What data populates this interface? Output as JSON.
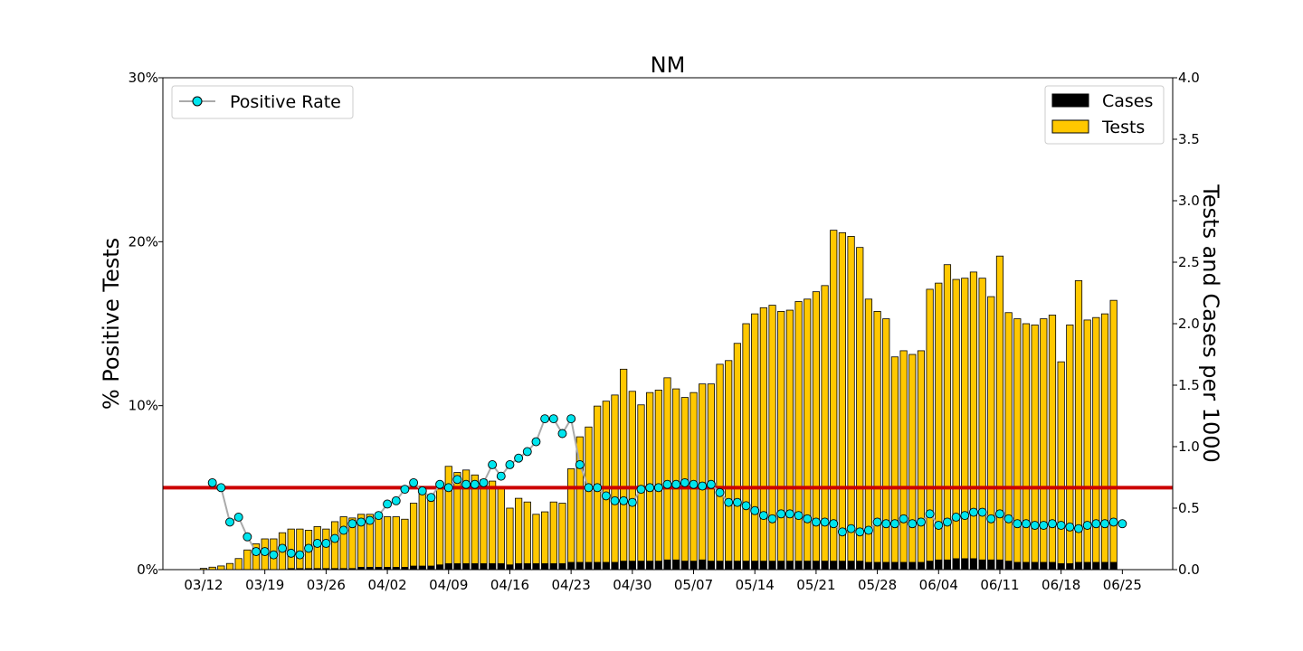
{
  "chart_data": {
    "type": "bar",
    "title": "NM",
    "ylabel_left": "% Positive Tests",
    "ylabel_right": "Tests and Cases per 1000",
    "ylim_left": [
      0,
      30
    ],
    "ylim_right": [
      0,
      4.0
    ],
    "left_ticks": [
      "0%",
      "10%",
      "20%",
      "30%"
    ],
    "right_ticks": [
      "0.0",
      "0.5",
      "1.0",
      "1.5",
      "2.0",
      "2.5",
      "3.0",
      "3.5",
      "4.0"
    ],
    "x_tick_labels": [
      "03/12",
      "03/19",
      "03/26",
      "04/02",
      "04/09",
      "04/16",
      "04/23",
      "04/30",
      "05/07",
      "05/14",
      "05/21",
      "05/28",
      "06/04",
      "06/11",
      "06/18",
      "06/25"
    ],
    "x_tick_days": [
      0,
      7,
      14,
      21,
      28,
      35,
      42,
      49,
      56,
      63,
      70,
      77,
      84,
      91,
      98,
      105
    ],
    "first_day": "03/12",
    "threshold": 5,
    "legend_left": {
      "position": "top-left",
      "entries": [
        {
          "name": "Positive Rate",
          "color": "#00e5ee"
        }
      ]
    },
    "legend_right": {
      "position": "top-right",
      "entries": [
        {
          "name": "Cases",
          "color": "#000000"
        },
        {
          "name": "Tests",
          "color": "#ffc800"
        }
      ]
    },
    "colors": {
      "tests": "#ffc800",
      "cases": "#000000",
      "rate_marker": "#00e5ee",
      "rate_line": "#aaaaaa",
      "threshold": "#cc0000"
    },
    "series": [
      {
        "name": "Tests",
        "axis": "right",
        "values": [
          0.01,
          0.02,
          0.03,
          0.05,
          0.09,
          0.16,
          0.21,
          0.25,
          0.25,
          0.3,
          0.33,
          0.33,
          0.32,
          0.35,
          0.33,
          0.39,
          0.43,
          0.42,
          0.45,
          0.45,
          0.43,
          0.43,
          0.43,
          0.41,
          0.54,
          0.63,
          0.61,
          0.71,
          0.84,
          0.79,
          0.81,
          0.77,
          0.73,
          0.72,
          0.66,
          0.5,
          0.58,
          0.55,
          0.45,
          0.47,
          0.55,
          0.54,
          0.82,
          1.08,
          1.16,
          1.33,
          1.37,
          1.42,
          1.63,
          1.45,
          1.34,
          1.44,
          1.46,
          1.56,
          1.47,
          1.4,
          1.44,
          1.51,
          1.51,
          1.67,
          1.7,
          1.84,
          2.0,
          2.08,
          2.13,
          2.15,
          2.1,
          2.11,
          2.18,
          2.2,
          2.26,
          2.31,
          2.76,
          2.74,
          2.71,
          2.62,
          2.2,
          2.1,
          2.04,
          1.73,
          1.78,
          1.75,
          1.78,
          2.28,
          2.33,
          2.48,
          2.36,
          2.37,
          2.42,
          2.37,
          2.22,
          2.55,
          2.09,
          2.04,
          2.0,
          1.99,
          2.04,
          2.07,
          1.69,
          1.99,
          2.35,
          2.03,
          2.05,
          2.08,
          2.19
        ]
      },
      {
        "name": "Cases",
        "axis": "right",
        "values": [
          0.0,
          0.0,
          0.0,
          0.0,
          0.0,
          0.0,
          0.0,
          0.0,
          0.0,
          0.0,
          0.01,
          0.01,
          0.01,
          0.01,
          0.01,
          0.01,
          0.01,
          0.01,
          0.02,
          0.02,
          0.02,
          0.02,
          0.02,
          0.02,
          0.03,
          0.03,
          0.03,
          0.04,
          0.05,
          0.05,
          0.05,
          0.05,
          0.05,
          0.05,
          0.05,
          0.04,
          0.05,
          0.05,
          0.05,
          0.05,
          0.05,
          0.05,
          0.06,
          0.06,
          0.06,
          0.06,
          0.06,
          0.06,
          0.07,
          0.07,
          0.07,
          0.07,
          0.07,
          0.08,
          0.08,
          0.07,
          0.07,
          0.08,
          0.07,
          0.07,
          0.07,
          0.07,
          0.07,
          0.07,
          0.07,
          0.07,
          0.07,
          0.07,
          0.07,
          0.07,
          0.07,
          0.07,
          0.07,
          0.07,
          0.07,
          0.07,
          0.06,
          0.06,
          0.06,
          0.06,
          0.06,
          0.06,
          0.06,
          0.07,
          0.08,
          0.08,
          0.09,
          0.09,
          0.09,
          0.08,
          0.08,
          0.08,
          0.07,
          0.06,
          0.06,
          0.06,
          0.06,
          0.06,
          0.05,
          0.05,
          0.06,
          0.06,
          0.06,
          0.06,
          0.06
        ]
      },
      {
        "name": "Positive Rate",
        "axis": "left",
        "start_day": 1,
        "values": [
          5.3,
          5.0,
          2.9,
          3.2,
          2.0,
          1.1,
          1.1,
          0.9,
          1.3,
          1.0,
          0.9,
          1.3,
          1.6,
          1.6,
          1.9,
          2.4,
          2.8,
          2.9,
          3.0,
          3.3,
          4.0,
          4.2,
          4.9,
          5.3,
          4.8,
          4.4,
          5.2,
          5.0,
          5.5,
          5.2,
          5.2,
          5.3,
          6.4,
          5.7,
          6.4,
          6.8,
          7.2,
          7.8,
          9.2,
          9.2,
          8.3,
          9.2,
          6.4,
          5.0,
          5.0,
          4.5,
          4.2,
          4.2,
          4.1,
          4.9,
          5.0,
          5.0,
          5.2,
          5.2,
          5.3,
          5.2,
          5.1,
          5.2,
          4.7,
          4.1,
          4.1,
          3.9,
          3.6,
          3.3,
          3.1,
          3.4,
          3.4,
          3.3,
          3.1,
          2.9,
          2.9,
          2.8,
          2.3,
          2.5,
          2.3,
          2.4,
          2.9,
          2.8,
          2.8,
          3.1,
          2.8,
          2.9,
          3.4,
          2.7,
          2.9,
          3.2,
          3.3,
          3.5,
          3.5,
          3.1,
          3.4,
          3.1,
          2.8,
          2.8,
          2.7,
          2.7,
          2.8,
          2.7,
          2.6,
          2.5,
          2.7,
          2.8,
          2.8,
          2.9,
          2.8
        ]
      }
    ]
  }
}
